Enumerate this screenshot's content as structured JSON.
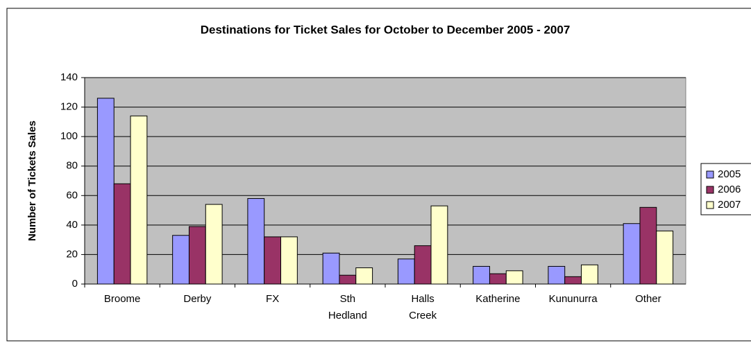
{
  "chart_data": {
    "type": "bar",
    "title": "Destinations for Ticket Sales for October to December 2005 - 2007",
    "y_label": "Number of Tickets Sales",
    "categories": [
      "Broome",
      "Derby",
      "FX",
      "Sth\nHedland",
      "Halls\nCreek",
      "Katherine",
      "Kununurra",
      "Other"
    ],
    "series": [
      {
        "name": "2005",
        "color": "#9999ff",
        "values": [
          126,
          33,
          58,
          21,
          17,
          12,
          12,
          41
        ]
      },
      {
        "name": "2006",
        "color": "#993366",
        "values": [
          68,
          39,
          32,
          6,
          26,
          7,
          5,
          52
        ]
      },
      {
        "name": "2007",
        "color": "#ffffcc",
        "values": [
          114,
          54,
          32,
          11,
          53,
          9,
          13,
          36
        ]
      }
    ],
    "ylim": [
      0,
      140
    ],
    "yticks": [
      0,
      20,
      40,
      60,
      80,
      100,
      120,
      140
    ],
    "grid": true,
    "legend": "right"
  }
}
